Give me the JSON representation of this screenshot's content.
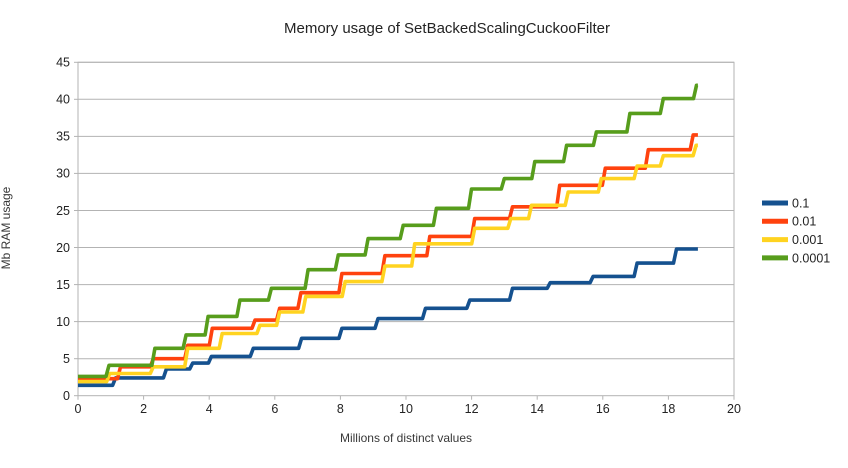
{
  "title": "Memory usage of SetBackedScalingCuckooFilter",
  "colors": {
    "background": "#ffffff",
    "grid": "#b3b3b3",
    "frame": "#b3b3b3",
    "text": "#232323"
  },
  "chart_data": {
    "type": "line",
    "step": "after",
    "title": "Memory usage of SetBackedScalingCuckooFilter",
    "xlabel": "Millions of distinct values",
    "ylabel": "Mb RAM usage",
    "xlim": [
      0,
      20
    ],
    "ylim": [
      0,
      45
    ],
    "x_ticks": [
      0,
      2,
      4,
      6,
      8,
      10,
      12,
      14,
      16,
      18,
      20
    ],
    "y_ticks": [
      0,
      5,
      10,
      15,
      20,
      25,
      30,
      35,
      40,
      45
    ],
    "grid": "horizontal",
    "legend_position": "right",
    "x_end": 18.9,
    "series": [
      {
        "name": "0.1",
        "color": "#15518f",
        "points": [
          [
            0,
            1.4
          ],
          [
            1.1,
            2.4
          ],
          [
            2.65,
            3.6
          ],
          [
            3.45,
            4.4
          ],
          [
            4.02,
            5.3
          ],
          [
            5.3,
            6.4
          ],
          [
            6.77,
            7.75
          ],
          [
            8.0,
            9.1
          ],
          [
            9.1,
            10.4
          ],
          [
            10.55,
            11.8
          ],
          [
            11.9,
            12.9
          ],
          [
            13.2,
            14.5
          ],
          [
            14.35,
            15.25
          ],
          [
            15.66,
            16.1
          ],
          [
            17.0,
            17.9
          ],
          [
            18.2,
            19.8
          ],
          [
            18.9,
            19.8
          ]
        ]
      },
      {
        "name": "0.01",
        "color": "#ff420e",
        "points": [
          [
            0,
            2.3
          ],
          [
            1.25,
            3.9
          ],
          [
            2.25,
            5.0
          ],
          [
            3.3,
            6.8
          ],
          [
            4.05,
            9.1
          ],
          [
            5.35,
            10.2
          ],
          [
            6.1,
            11.8
          ],
          [
            6.75,
            13.9
          ],
          [
            8.0,
            16.5
          ],
          [
            9.31,
            18.9
          ],
          [
            10.68,
            21.5
          ],
          [
            12.05,
            23.9
          ],
          [
            13.2,
            25.5
          ],
          [
            14.64,
            28.4
          ],
          [
            16.03,
            30.7
          ],
          [
            17.34,
            33.2
          ],
          [
            18.71,
            35.2
          ],
          [
            18.9,
            35.2
          ]
        ]
      },
      {
        "name": "0.001",
        "color": "#ffd320",
        "points": [
          [
            0,
            1.9
          ],
          [
            0.92,
            3.0
          ],
          [
            2.25,
            3.9
          ],
          [
            3.3,
            6.4
          ],
          [
            4.35,
            8.4
          ],
          [
            5.5,
            9.5
          ],
          [
            6.1,
            11.3
          ],
          [
            6.9,
            13.4
          ],
          [
            8.1,
            15.4
          ],
          [
            9.31,
            17.5
          ],
          [
            10.22,
            20.5
          ],
          [
            12.05,
            22.6
          ],
          [
            13.15,
            23.9
          ],
          [
            13.78,
            25.7
          ],
          [
            14.9,
            27.5
          ],
          [
            15.91,
            29.3
          ],
          [
            17.0,
            31.0
          ],
          [
            17.8,
            32.4
          ],
          [
            18.8,
            33.8
          ],
          [
            18.9,
            33.8
          ]
        ]
      },
      {
        "name": "0.0001",
        "color": "#579d1c",
        "points": [
          [
            0,
            2.6
          ],
          [
            0.9,
            4.1
          ],
          [
            2.3,
            6.4
          ],
          [
            3.25,
            8.2
          ],
          [
            3.92,
            10.7
          ],
          [
            4.89,
            12.9
          ],
          [
            5.85,
            14.5
          ],
          [
            6.97,
            17.0
          ],
          [
            7.89,
            19.0
          ],
          [
            8.8,
            21.2
          ],
          [
            9.87,
            23.0
          ],
          [
            10.88,
            25.3
          ],
          [
            11.95,
            27.9
          ],
          [
            12.95,
            29.3
          ],
          [
            13.88,
            31.6
          ],
          [
            14.85,
            33.8
          ],
          [
            15.76,
            35.6
          ],
          [
            16.78,
            38.1
          ],
          [
            17.8,
            40.1
          ],
          [
            18.81,
            41.9
          ],
          [
            18.9,
            41.9
          ]
        ]
      }
    ]
  }
}
